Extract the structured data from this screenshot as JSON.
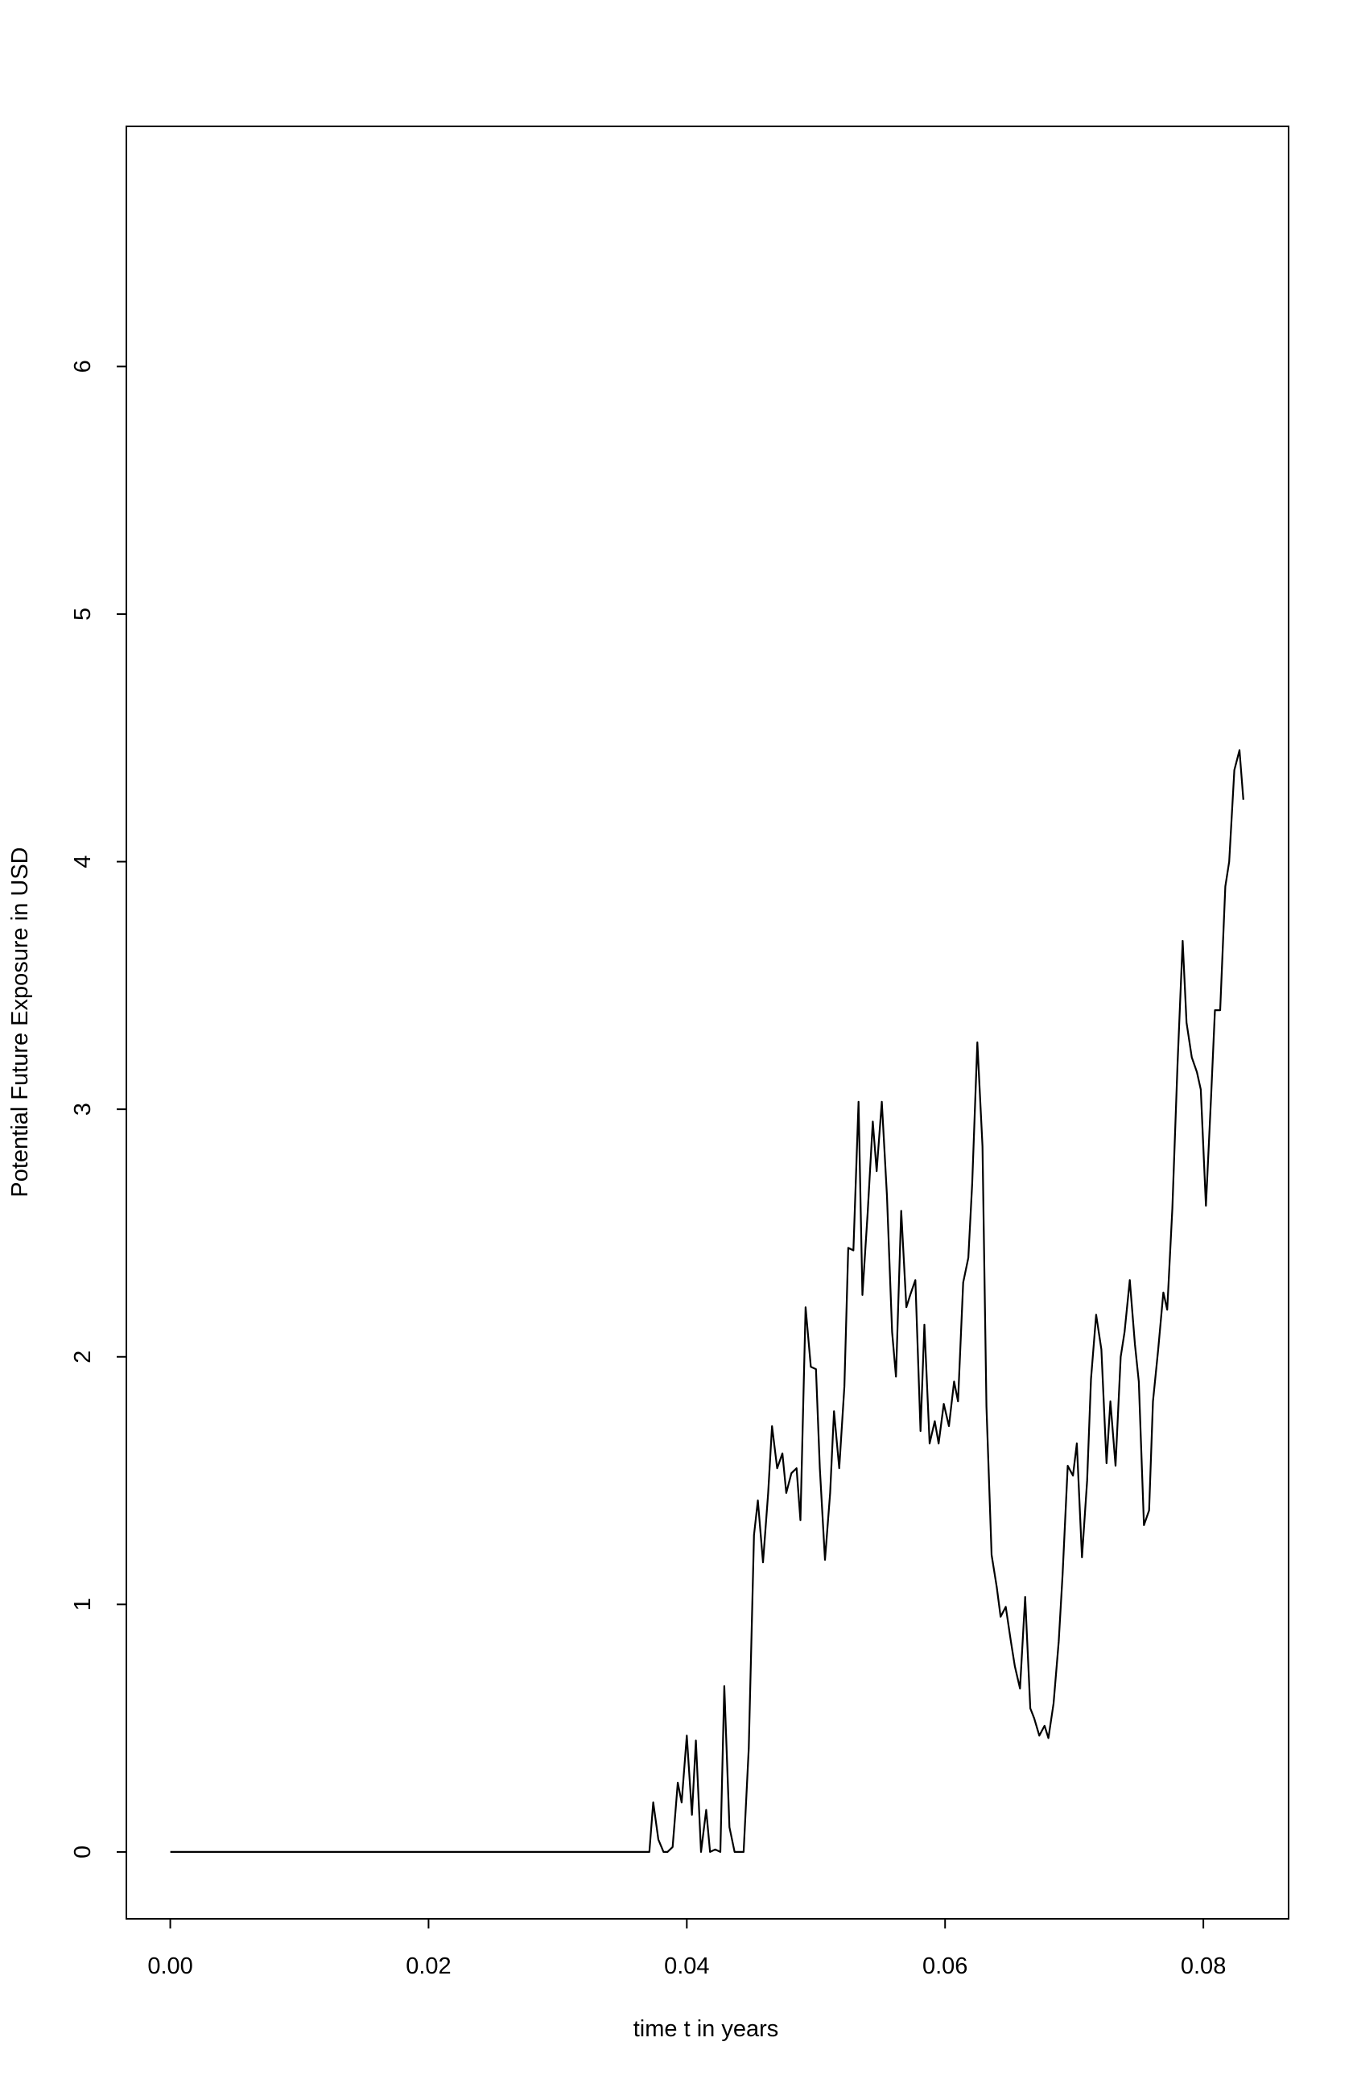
{
  "chart_data": {
    "type": "line",
    "title": "",
    "xlabel": "time t in years",
    "ylabel": "Potential Future Exposure in USD",
    "xlim": [
      -0.0034,
      0.0866
    ],
    "ylim": [
      -0.27,
      6.97
    ],
    "x_ticks": [
      0.0,
      0.02,
      0.04,
      0.06,
      0.08
    ],
    "x_tick_labels": [
      "0.00",
      "0.02",
      "0.04",
      "0.06",
      "0.08"
    ],
    "y_ticks": [
      0,
      1,
      2,
      3,
      4,
      5,
      6
    ],
    "y_tick_labels": [
      "0",
      "1",
      "2",
      "3",
      "4",
      "5",
      "6"
    ],
    "grid": false,
    "legend": "none",
    "line_color": "#000000",
    "series": [
      {
        "x": [
          0.0,
          0.0371,
          0.0374,
          0.0378,
          0.0382,
          0.0385,
          0.0389,
          0.0393,
          0.0396,
          0.04,
          0.0404,
          0.0407,
          0.0411,
          0.0415,
          0.0418,
          0.0422,
          0.0426,
          0.0429,
          0.0433,
          0.0437,
          0.0441,
          0.0444,
          0.0448,
          0.0452,
          0.0455,
          0.0459,
          0.0463,
          0.0466,
          0.047,
          0.0474,
          0.0477,
          0.0481,
          0.0485,
          0.0488,
          0.0492,
          0.0496,
          0.05,
          0.0503,
          0.0507,
          0.0511,
          0.0514,
          0.0518,
          0.0522,
          0.0525,
          0.0529,
          0.0533,
          0.0536,
          0.054,
          0.0544,
          0.0547,
          0.0551,
          0.0555,
          0.0559,
          0.0562,
          0.0566,
          0.057,
          0.0573,
          0.0577,
          0.0581,
          0.0584,
          0.0588,
          0.0592,
          0.0595,
          0.0599,
          0.0603,
          0.0607,
          0.061,
          0.0614,
          0.0618,
          0.0621,
          0.0625,
          0.0629,
          0.0632,
          0.0636,
          0.064,
          0.0643,
          0.0647,
          0.0651,
          0.0654,
          0.0658,
          0.0662,
          0.0666,
          0.0669,
          0.0673,
          0.0677,
          0.068,
          0.0684,
          0.0688,
          0.0691,
          0.0695,
          0.0699,
          0.0702,
          0.0706,
          0.071,
          0.0713,
          0.0717,
          0.0721,
          0.0725,
          0.0728,
          0.0732,
          0.0736,
          0.0739,
          0.0743,
          0.0747,
          0.075,
          0.0754,
          0.0758,
          0.0761,
          0.0765,
          0.0769,
          0.0772,
          0.0776,
          0.078,
          0.0784,
          0.0787,
          0.0791,
          0.0795,
          0.0798,
          0.0802,
          0.0806,
          0.0809,
          0.0813,
          0.0817,
          0.082,
          0.0824,
          0.0828,
          0.0831
        ],
        "y": [
          0.0,
          0.0,
          0.2,
          0.05,
          0.0,
          0.0,
          0.02,
          0.28,
          0.2,
          0.47,
          0.15,
          0.45,
          0.0,
          0.17,
          0.0,
          0.01,
          0.0,
          0.67,
          0.1,
          0.0,
          0.0,
          0.0,
          0.42,
          1.28,
          1.42,
          1.17,
          1.45,
          1.72,
          1.55,
          1.61,
          1.45,
          1.53,
          1.55,
          1.34,
          2.2,
          1.96,
          1.95,
          1.55,
          1.18,
          1.45,
          1.78,
          1.55,
          1.88,
          2.44,
          2.43,
          3.03,
          2.25,
          2.58,
          2.95,
          2.75,
          3.03,
          2.65,
          2.1,
          1.92,
          2.59,
          2.2,
          2.25,
          2.31,
          1.7,
          2.13,
          1.65,
          1.74,
          1.65,
          1.81,
          1.72,
          1.9,
          1.82,
          2.3,
          2.4,
          2.7,
          3.27,
          2.85,
          1.8,
          1.2,
          1.07,
          0.95,
          0.99,
          0.85,
          0.75,
          0.66,
          1.03,
          0.58,
          0.54,
          0.47,
          0.51,
          0.46,
          0.6,
          0.85,
          1.12,
          1.56,
          1.52,
          1.65,
          1.19,
          1.5,
          1.91,
          2.17,
          2.03,
          1.57,
          1.82,
          1.56,
          2.0,
          2.1,
          2.31,
          2.05,
          1.9,
          1.32,
          1.38,
          1.82,
          2.03,
          2.26,
          2.19,
          2.6,
          3.18,
          3.68,
          3.35,
          3.21,
          3.15,
          3.08,
          2.61,
          3.05,
          3.4,
          3.4,
          3.9,
          4.0,
          4.37,
          4.45,
          4.25
        ]
      }
    ]
  }
}
